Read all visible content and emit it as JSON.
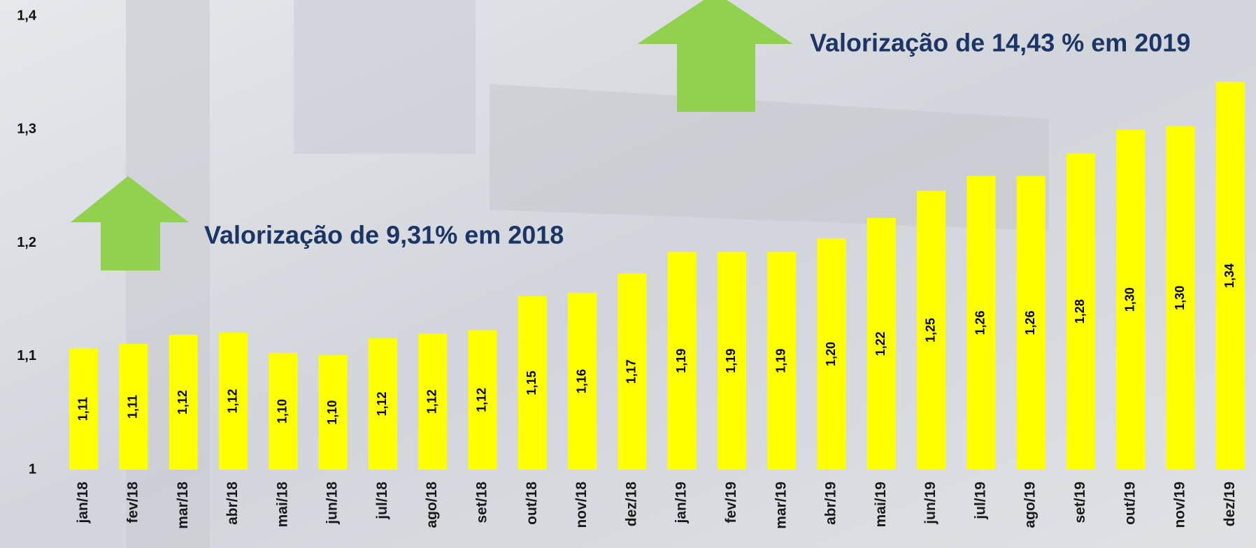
{
  "chart_data": {
    "type": "bar",
    "categories": [
      "jan/18",
      "fev/18",
      "mar/18",
      "abr/18",
      "mai/18",
      "jun/18",
      "jul/18",
      "ago/18",
      "set/18",
      "out/18",
      "nov/18",
      "dez/18",
      "jan/19",
      "fev/19",
      "mar/19",
      "abr/19",
      "mai/19",
      "jun/19",
      "jul/19",
      "ago/19",
      "set/19",
      "out/19",
      "nov/19",
      "dez/19"
    ],
    "values": [
      1.107,
      1.111,
      1.119,
      1.121,
      1.103,
      1.101,
      1.116,
      1.12,
      1.123,
      1.153,
      1.156,
      1.173,
      1.192,
      1.192,
      1.192,
      1.204,
      1.222,
      1.246,
      1.259,
      1.259,
      1.279,
      1.3,
      1.303,
      1.342
    ],
    "value_labels": [
      "1,11",
      "1,11",
      "1,12",
      "1,12",
      "1,10",
      "1,10",
      "1,12",
      "1,12",
      "1,12",
      "1,15",
      "1,16",
      "1,17",
      "1,19",
      "1,19",
      "1,19",
      "1,20",
      "1,22",
      "1,25",
      "1,26",
      "1,26",
      "1,28",
      "1,30",
      "1,30",
      "1,34"
    ],
    "color": "#ffff00",
    "ylim": [
      1,
      1.4
    ],
    "yticks": [
      1,
      {
        "value": 1.1,
        "label": "1,1"
      },
      {
        "value": 1.2,
        "label": "1,2"
      },
      {
        "value": 1.3,
        "label": "1,3"
      },
      {
        "value": 1.4,
        "label": "1,4"
      }
    ],
    "grid": false,
    "annotations": [
      "Valorização de 9,31% em 2018",
      "Valorização de 14,43 % em 2019"
    ]
  }
}
